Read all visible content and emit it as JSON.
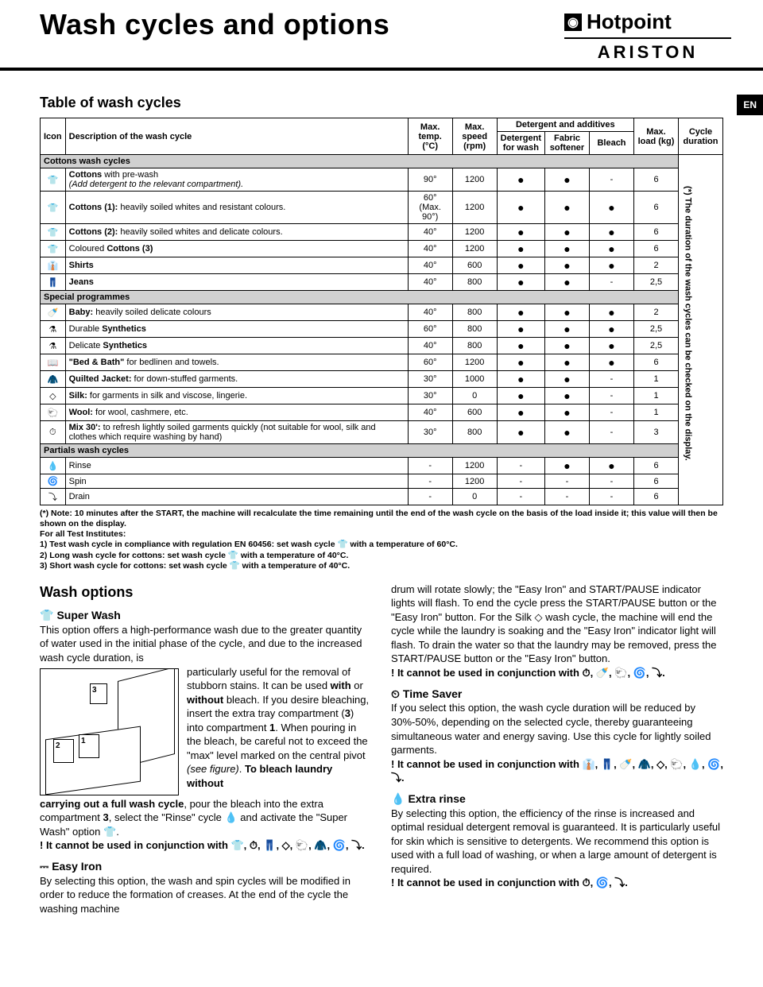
{
  "header": {
    "page_title": "Wash cycles and options",
    "brand_top": "Hotpoint",
    "brand_bottom": "ARISTON",
    "lang_tab": "EN"
  },
  "table": {
    "title": "Table of wash cycles",
    "columns": {
      "icon": "Icon",
      "desc": "Description of the wash cycle",
      "temp": "Max. temp. (°C)",
      "speed": "Max. speed (rpm)",
      "det_group": "Detergent and additives",
      "det_wash": "Detergent for wash",
      "softener": "Fabric softener",
      "bleach": "Bleach",
      "load": "Max. load (kg)",
      "duration": "Cycle duration"
    },
    "sections": [
      {
        "label": "Cottons wash cycles",
        "rows": [
          {
            "icon": "👕",
            "desc_html": "<b>Cottons</b> with pre-wash<br><i>(Add detergent to the relevant compartment).</i>",
            "temp": "90°",
            "speed": "1200",
            "d": "●",
            "s": "●",
            "b": "-",
            "load": "6"
          },
          {
            "icon": "👕",
            "desc_html": "<b>Cottons (1):</b> heavily soiled whites and resistant colours.",
            "temp": "60°<br>(Max. 90°)",
            "speed": "1200",
            "d": "●",
            "s": "●",
            "b": "●",
            "load": "6"
          },
          {
            "icon": "👕",
            "desc_html": "<b>Cottons (2):</b> heavily soiled whites and delicate colours.",
            "temp": "40°",
            "speed": "1200",
            "d": "●",
            "s": "●",
            "b": "●",
            "load": "6"
          },
          {
            "icon": "👕",
            "desc_html": "Coloured <b>Cottons (3)</b>",
            "temp": "40°",
            "speed": "1200",
            "d": "●",
            "s": "●",
            "b": "●",
            "load": "6"
          },
          {
            "icon": "👔",
            "desc_html": "<b>Shirts</b>",
            "temp": "40°",
            "speed": "600",
            "d": "●",
            "s": "●",
            "b": "●",
            "load": "2"
          },
          {
            "icon": "👖",
            "desc_html": "<b>Jeans</b>",
            "temp": "40°",
            "speed": "800",
            "d": "●",
            "s": "●",
            "b": "-",
            "load": "2,5"
          }
        ]
      },
      {
        "label": "Special programmes",
        "rows": [
          {
            "icon": "🍼",
            "desc_html": "<b>Baby:</b> heavily soiled delicate colours",
            "temp": "40°",
            "speed": "800",
            "d": "●",
            "s": "●",
            "b": "●",
            "load": "2"
          },
          {
            "icon": "⚗",
            "desc_html": "Durable <b>Synthetics</b>",
            "temp": "60°",
            "speed": "800",
            "d": "●",
            "s": "●",
            "b": "●",
            "load": "2,5"
          },
          {
            "icon": "⚗",
            "desc_html": "Delicate <b>Synthetics</b>",
            "temp": "40°",
            "speed": "800",
            "d": "●",
            "s": "●",
            "b": "●",
            "load": "2,5"
          },
          {
            "icon": "📖",
            "desc_html": "<b>\"Bed &amp; Bath\"</b> for bedlinen and towels.",
            "temp": "60°",
            "speed": "1200",
            "d": "●",
            "s": "●",
            "b": "●",
            "load": "6"
          },
          {
            "icon": "🧥",
            "desc_html": "<b>Quilted Jacket:</b> for down-stuffed garments.",
            "temp": "30°",
            "speed": "1000",
            "d": "●",
            "s": "●",
            "b": "-",
            "load": "1"
          },
          {
            "icon": "◇",
            "desc_html": "<b>Silk:</b> for garments in silk and viscose, lingerie.",
            "temp": "30°",
            "speed": "0",
            "d": "●",
            "s": "●",
            "b": "-",
            "load": "1"
          },
          {
            "icon": "🐑",
            "desc_html": "<b>Wool:</b> for wool, cashmere, etc.",
            "temp": "40°",
            "speed": "600",
            "d": "●",
            "s": "●",
            "b": "-",
            "load": "1"
          },
          {
            "icon": "⏱",
            "desc_html": "<b>Mix 30':</b> to refresh lightly soiled garments quickly (not suitable for wool, silk and clothes which require washing by hand)",
            "temp": "30°",
            "speed": "800",
            "d": "●",
            "s": "●",
            "b": "-",
            "load": "3"
          }
        ]
      },
      {
        "label": "Partials wash cycles",
        "rows": [
          {
            "icon": "💧",
            "desc_html": "Rinse",
            "temp": "-",
            "speed": "1200",
            "d": "-",
            "s": "●",
            "b": "●",
            "load": "6"
          },
          {
            "icon": "🌀",
            "desc_html": "Spin",
            "temp": "-",
            "speed": "1200",
            "d": "-",
            "s": "-",
            "b": "-",
            "load": "6"
          },
          {
            "icon": "⤵",
            "desc_html": "Drain",
            "temp": "-",
            "speed": "0",
            "d": "-",
            "s": "-",
            "b": "-",
            "load": "6"
          }
        ]
      }
    ],
    "duration_note": "(*) The duration of the wash cycles can be checked on the display."
  },
  "footnotes": {
    "note": "(*) Note: 10 minutes after the START, the machine will recalculate the time remaining until the end of the wash cycle on the basis of the load inside it; this value will then be shown on the display.",
    "test_intro": "For all Test Institutes:",
    "test1": "1) Test wash cycle in compliance with regulation EN 60456: set wash cycle 👕 with a temperature of 60°C.",
    "test2": "2) Long wash cycle for cottons: set wash cycle 👕 with a temperature of 40°C.",
    "test3": "3) Short wash cycle for cottons: set wash cycle 👕 with a temperature of 40°C."
  },
  "options": {
    "title": "Wash options",
    "super_wash": {
      "label": "Super Wash",
      "p1": "This option offers a high-performance wash due to the greater quantity of water used in the initial phase of the cycle, and due to the increased wash cycle duration, is",
      "p2_html": "particularly useful for the removal of stubborn stains. It can be used <b>with</b> or <b>without</b> bleach. If you desire bleaching, insert the extra tray compartment (<b>3</b>) into compartment <b>1</b>. When pouring in the bleach, be careful not to exceed the \"max\" level marked on the central pivot <i>(see figure)</i>. <b>To bleach laundry without</b>",
      "p3_html": "<b>carrying out a full wash cycle</b>, pour the bleach into the extra compartment <b>3</b>, select the \"Rinse\" cycle 💧 and activate the \"Super Wash\" option 👕.",
      "warn": "! It cannot be used in conjunction with 👕, ⏱, 👖, ◇, 🐑, 🧥, 🌀, ⤵."
    },
    "easy_iron": {
      "label": "Easy Iron",
      "p1": "By selecting this option, the wash and spin cycles will be modified in order to reduce the formation of creases. At the end of the cycle the washing machine",
      "p2_html": "drum will rotate slowly; the \"Easy Iron\" and START/PAUSE indicator lights will flash. To end the cycle press the START/PAUSE button or the \"Easy Iron\" button. For the Silk ◇ wash cycle, the machine will end the cycle while the laundry is soaking and the \"Easy Iron\" indicator light will flash. To drain the water so that the laundry may be removed, press the START/PAUSE button or the \"Easy Iron\" button.",
      "warn": "! It cannot be used in conjunction with ⏱, 🍼, 🐑, 🌀, ⤵."
    },
    "time_saver": {
      "label": "Time Saver",
      "p1": "If you select this option, the wash cycle duration will be reduced by 30%-50%, depending on the selected cycle, thereby guaranteeing simultaneous water and energy saving. Use this cycle for lightly soiled garments.",
      "warn": "! It cannot be used in conjunction with 👔, 👖, 🍼, 🧥, ◇, 🐑, 💧, 🌀, ⤵."
    },
    "extra_rinse": {
      "label": "Extra rinse",
      "p1": "By selecting this option, the efficiency of the rinse is increased and optimal residual detergent removal is guaranteed. It is particularly useful for skin which is sensitive to detergents. We recommend this option is used with a full load of washing, or when a large amount of detergent is required.",
      "warn": "! It cannot be used in conjunction with ⏱, 🌀, ⤵."
    }
  },
  "figure": {
    "c1": "1",
    "c2": "2",
    "c3": "3"
  },
  "colors": {
    "section_bg": "#d0d0d0",
    "border": "#000000",
    "bg": "#ffffff"
  }
}
